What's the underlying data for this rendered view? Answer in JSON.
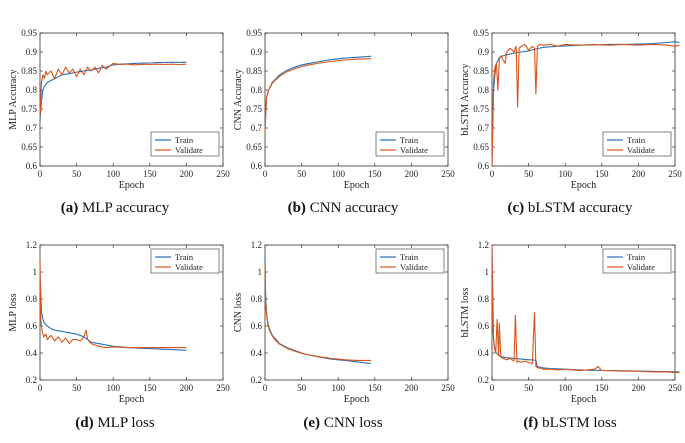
{
  "colors": {
    "train": "#2b6fb8",
    "validate": "#d9541a"
  },
  "panels": [
    {
      "id": "a",
      "caption_label": "(a)",
      "caption_text": "MLP accuracy",
      "chart_data": {
        "type": "line",
        "title": "",
        "xlabel": "Epoch",
        "ylabel": "MLP Accuracy",
        "xlim": [
          0,
          250
        ],
        "ylim": [
          0.6,
          0.95
        ],
        "xticks": [
          "0",
          "50",
          "100",
          "150",
          "200",
          "250"
        ],
        "yticks": [
          "0.6",
          "0.65",
          "0.7",
          "0.75",
          "0.8",
          "0.85",
          "0.9",
          "0.95"
        ],
        "legend": [
          "Train",
          "Validate"
        ],
        "legend_position": "bottom-right",
        "series": [
          {
            "name": "Train",
            "x": [
              0,
              2,
              4,
              6,
              8,
              10,
              15,
              20,
              25,
              30,
              40,
              50,
              60,
              70,
              80,
              90,
              100,
              110,
              120,
              130,
              140,
              150,
              160,
              170,
              180,
              190,
              200
            ],
            "y": [
              0.72,
              0.77,
              0.8,
              0.81,
              0.815,
              0.82,
              0.825,
              0.83,
              0.835,
              0.84,
              0.843,
              0.847,
              0.85,
              0.853,
              0.857,
              0.86,
              0.866,
              0.868,
              0.869,
              0.87,
              0.871,
              0.871,
              0.872,
              0.872,
              0.873,
              0.873,
              0.873
            ]
          },
          {
            "name": "Validate",
            "x": [
              0,
              2,
              4,
              6,
              8,
              10,
              15,
              20,
              25,
              30,
              35,
              40,
              45,
              50,
              55,
              60,
              65,
              70,
              75,
              80,
              85,
              90,
              100,
              110,
              120,
              130,
              140,
              150,
              160,
              170,
              180,
              190,
              200
            ],
            "y": [
              0.73,
              0.82,
              0.84,
              0.83,
              0.85,
              0.84,
              0.85,
              0.83,
              0.855,
              0.84,
              0.86,
              0.845,
              0.855,
              0.835,
              0.855,
              0.84,
              0.86,
              0.85,
              0.86,
              0.845,
              0.865,
              0.855,
              0.87,
              0.867,
              0.868,
              0.866,
              0.868,
              0.867,
              0.868,
              0.867,
              0.868,
              0.867,
              0.868
            ]
          }
        ]
      }
    },
    {
      "id": "b",
      "caption_label": "(b)",
      "caption_text": "CNN accuracy",
      "chart_data": {
        "type": "line",
        "title": "",
        "xlabel": "Epoch",
        "ylabel": "CNN Accuracy",
        "xlim": [
          0,
          250
        ],
        "ylim": [
          0.6,
          0.95
        ],
        "xticks": [
          "0",
          "50",
          "100",
          "150",
          "200",
          "250"
        ],
        "yticks": [
          "0.6",
          "0.65",
          "0.7",
          "0.75",
          "0.8",
          "0.85",
          "0.9",
          "0.95"
        ],
        "legend": [
          "Train",
          "Validate"
        ],
        "legend_position": "bottom-right",
        "series": [
          {
            "name": "Train",
            "x": [
              0,
              2,
              5,
              10,
              15,
              20,
              30,
              40,
              50,
              60,
              75,
              90,
              100,
              110,
              125,
              140,
              145
            ],
            "y": [
              0.7,
              0.78,
              0.8,
              0.82,
              0.83,
              0.84,
              0.852,
              0.86,
              0.866,
              0.87,
              0.875,
              0.88,
              0.882,
              0.884,
              0.886,
              0.888,
              0.889
            ]
          },
          {
            "name": "Validate",
            "x": [
              0,
              2,
              5,
              10,
              15,
              20,
              30,
              40,
              50,
              60,
              75,
              90,
              100,
              110,
              125,
              140,
              145
            ],
            "y": [
              0.69,
              0.78,
              0.8,
              0.818,
              0.828,
              0.836,
              0.848,
              0.856,
              0.862,
              0.866,
              0.871,
              0.875,
              0.877,
              0.879,
              0.881,
              0.882,
              0.883
            ]
          }
        ]
      }
    },
    {
      "id": "c",
      "caption_label": "(c)",
      "caption_text": "bLSTM accuracy",
      "chart_data": {
        "type": "line",
        "title": "",
        "xlabel": "Epoch",
        "ylabel": "bLSTM Accuracy",
        "xlim": [
          0,
          250
        ],
        "ylim": [
          0.6,
          0.95
        ],
        "xticks": [
          "0",
          "50",
          "100",
          "150",
          "200",
          "250"
        ],
        "yticks": [
          "0.6",
          "0.65",
          "0.7",
          "0.75",
          "0.8",
          "0.85",
          "0.9",
          "0.95"
        ],
        "legend": [
          "Train",
          "Validate"
        ],
        "legend_position": "bottom-right",
        "series": [
          {
            "name": "Train",
            "x": [
              0,
              2,
              4,
              6,
              10,
              15,
              20,
              30,
              40,
              50,
              60,
              70,
              80,
              100,
              120,
              140,
              160,
              180,
              200,
              220,
              240,
              250,
              256
            ],
            "y": [
              0.6,
              0.8,
              0.84,
              0.87,
              0.885,
              0.89,
              0.893,
              0.897,
              0.9,
              0.903,
              0.908,
              0.912,
              0.914,
              0.916,
              0.918,
              0.919,
              0.92,
              0.92,
              0.921,
              0.922,
              0.925,
              0.927,
              0.925
            ]
          },
          {
            "name": "Validate",
            "x": [
              0,
              2,
              4,
              6,
              8,
              10,
              12,
              15,
              18,
              20,
              25,
              30,
              33,
              35,
              37,
              40,
              45,
              50,
              55,
              58,
              60,
              62,
              65,
              70,
              80,
              90,
              100,
              120,
              140,
              160,
              180,
              200,
              220,
              240,
              250,
              256
            ],
            "y": [
              0.6,
              0.82,
              0.86,
              0.87,
              0.8,
              0.88,
              0.89,
              0.88,
              0.87,
              0.9,
              0.91,
              0.9,
              0.915,
              0.755,
              0.91,
              0.915,
              0.92,
              0.905,
              0.915,
              0.91,
              0.79,
              0.915,
              0.92,
              0.918,
              0.92,
              0.915,
              0.92,
              0.918,
              0.92,
              0.918,
              0.92,
              0.918,
              0.92,
              0.918,
              0.915,
              0.918
            ]
          }
        ]
      }
    },
    {
      "id": "d",
      "caption_label": "(d)",
      "caption_text": "MLP loss",
      "chart_data": {
        "type": "line",
        "title": "",
        "xlabel": "Epoch",
        "ylabel": "MLP loss",
        "xlim": [
          0,
          250
        ],
        "ylim": [
          0.2,
          1.2
        ],
        "xticks": [
          "0",
          "50",
          "100",
          "150",
          "200",
          "250"
        ],
        "yticks": [
          "0.2",
          "0.4",
          "0.6",
          "0.8",
          "1",
          "1.2"
        ],
        "legend": [
          "Train",
          "Validate"
        ],
        "legend_position": "top-right",
        "series": [
          {
            "name": "Train",
            "x": [
              0,
              2,
              4,
              6,
              10,
              15,
              20,
              30,
              40,
              50,
              60,
              65,
              70,
              80,
              90,
              100,
              120,
              140,
              160,
              180,
              200
            ],
            "y": [
              1.0,
              0.7,
              0.65,
              0.62,
              0.6,
              0.58,
              0.57,
              0.56,
              0.55,
              0.54,
              0.52,
              0.5,
              0.48,
              0.47,
              0.46,
              0.45,
              0.44,
              0.435,
              0.43,
              0.425,
              0.42
            ]
          },
          {
            "name": "Validate",
            "x": [
              0,
              1,
              3,
              5,
              8,
              10,
              15,
              20,
              25,
              30,
              35,
              40,
              45,
              50,
              55,
              60,
              63,
              65,
              70,
              75,
              80,
              90,
              100,
              120,
              140,
              160,
              180,
              200
            ],
            "y": [
              1.1,
              0.65,
              0.56,
              0.52,
              0.54,
              0.5,
              0.53,
              0.49,
              0.52,
              0.48,
              0.51,
              0.47,
              0.5,
              0.5,
              0.49,
              0.52,
              0.57,
              0.5,
              0.47,
              0.46,
              0.45,
              0.44,
              0.445,
              0.44,
              0.44,
              0.44,
              0.44,
              0.44
            ]
          }
        ]
      }
    },
    {
      "id": "e",
      "caption_label": "(e)",
      "caption_text": "CNN loss",
      "chart_data": {
        "type": "line",
        "title": "",
        "xlabel": "Epoch",
        "ylabel": "CNN loss",
        "xlim": [
          0,
          250
        ],
        "ylim": [
          0.2,
          1.2
        ],
        "xticks": [
          "0",
          "50",
          "100",
          "150",
          "200",
          "250"
        ],
        "yticks": [
          "0.2",
          "0.4",
          "0.6",
          "0.8",
          "1",
          "1.2"
        ],
        "legend": [
          "Train",
          "Validate"
        ],
        "legend_position": "top-right",
        "series": [
          {
            "name": "Train",
            "x": [
              0,
              1,
              2,
              4,
              6,
              10,
              15,
              20,
              30,
              40,
              50,
              60,
              75,
              90,
              100,
              110,
              125,
              140,
              145
            ],
            "y": [
              1.1,
              0.8,
              0.7,
              0.62,
              0.58,
              0.53,
              0.5,
              0.47,
              0.44,
              0.42,
              0.4,
              0.385,
              0.37,
              0.355,
              0.35,
              0.345,
              0.335,
              0.325,
              0.322
            ]
          },
          {
            "name": "Validate",
            "x": [
              0,
              1,
              2,
              4,
              6,
              10,
              15,
              20,
              30,
              40,
              50,
              60,
              75,
              90,
              100,
              110,
              125,
              140,
              145
            ],
            "y": [
              1.05,
              0.78,
              0.69,
              0.61,
              0.57,
              0.525,
              0.49,
              0.465,
              0.435,
              0.415,
              0.398,
              0.385,
              0.372,
              0.36,
              0.355,
              0.35,
              0.345,
              0.345,
              0.345
            ]
          }
        ]
      }
    },
    {
      "id": "f",
      "caption_label": "(f)",
      "caption_text": "bLSTM loss",
      "chart_data": {
        "type": "line",
        "title": "",
        "xlabel": "Epoch",
        "ylabel": "bLSTM loss",
        "xlim": [
          0,
          250
        ],
        "ylim": [
          0.2,
          1.2
        ],
        "xticks": [
          "0",
          "50",
          "100",
          "150",
          "200",
          "250"
        ],
        "yticks": [
          "0.2",
          "0.4",
          "0.6",
          "0.8",
          "1",
          "1.2"
        ],
        "legend": [
          "Train",
          "Validate"
        ],
        "legend_position": "top-right",
        "series": [
          {
            "name": "Train",
            "x": [
              0,
              2,
              4,
              6,
              10,
              15,
              20,
              30,
              40,
              50,
              55,
              60,
              62,
              70,
              80,
              100,
              120,
              140,
              160,
              180,
              200,
              220,
              240,
              256
            ],
            "y": [
              1.2,
              0.5,
              0.42,
              0.4,
              0.38,
              0.37,
              0.365,
              0.36,
              0.355,
              0.35,
              0.35,
              0.345,
              0.3,
              0.29,
              0.285,
              0.28,
              0.275,
              0.272,
              0.27,
              0.268,
              0.266,
              0.264,
              0.262,
              0.26
            ]
          },
          {
            "name": "Validate",
            "x": [
              0,
              1,
              3,
              5,
              7,
              9,
              10,
              12,
              15,
              20,
              25,
              30,
              32,
              34,
              36,
              40,
              45,
              50,
              55,
              58,
              60,
              62,
              65,
              70,
              80,
              90,
              100,
              120,
              140,
              145,
              150,
              160,
              180,
              200,
              220,
              240,
              250,
              256
            ],
            "y": [
              1.2,
              0.6,
              0.45,
              0.4,
              0.65,
              0.38,
              0.62,
              0.37,
              0.36,
              0.35,
              0.36,
              0.34,
              0.68,
              0.33,
              0.34,
              0.33,
              0.34,
              0.33,
              0.32,
              0.7,
              0.3,
              0.29,
              0.29,
              0.28,
              0.28,
              0.275,
              0.28,
              0.27,
              0.28,
              0.3,
              0.27,
              0.27,
              0.265,
              0.265,
              0.26,
              0.26,
              0.255,
              0.255
            ]
          }
        ]
      }
    }
  ]
}
